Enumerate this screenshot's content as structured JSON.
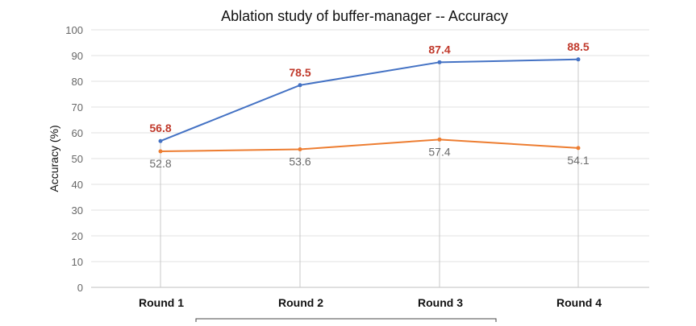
{
  "chart_data": {
    "type": "line",
    "title": "Ablation study of buffer-manager -- Accuracy",
    "xlabel": "",
    "ylabel": "Accuracy (%)",
    "categories": [
      "Round 1",
      "Round 2",
      "Round 3",
      "Round 4"
    ],
    "ylim": [
      0,
      100
    ],
    "yticks": [
      0,
      10,
      20,
      30,
      40,
      50,
      60,
      70,
      80,
      90,
      100
    ],
    "grid": true,
    "legend": "bottom",
    "series": [
      {
        "values": [
          56.8,
          78.5,
          87.4,
          88.5
        ],
        "color": "#4472c4",
        "label_color": "#c0392b"
      },
      {
        "values": [
          52.8,
          53.6,
          57.4,
          54.1
        ],
        "color": "#ed7d31",
        "label_color": "#6b6b6b"
      }
    ]
  }
}
